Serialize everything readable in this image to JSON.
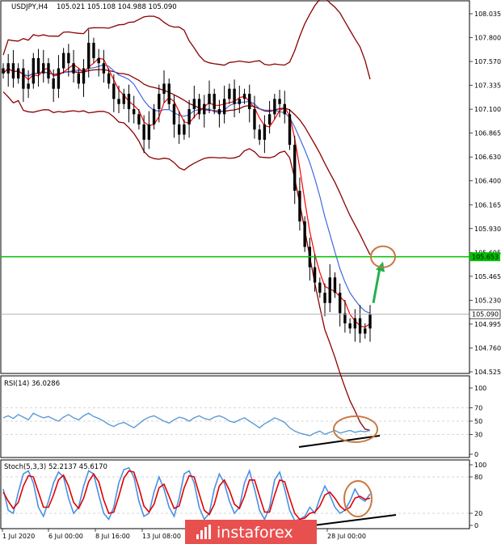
{
  "header": {
    "symbol": "USDJPY,H4",
    "ohlc": "105.021 105.108 104.988 105.090"
  },
  "indicators": {
    "rsi_label": "RSI(14) 36.0286",
    "stoch_label": "Stoch(5,3,3) 52.2137 45.6170"
  },
  "price_axis": {
    "ticks": [
      "108.035",
      "107.800",
      "107.570",
      "107.335",
      "107.100",
      "106.865",
      "106.630",
      "106.400",
      "106.165",
      "105.930",
      "105.695",
      "105.465",
      "105.230",
      "104.995",
      "104.760",
      "104.525"
    ],
    "current_price_label": "105.090",
    "level_label": "105.653"
  },
  "rsi_axis": {
    "ticks": [
      "100",
      "70",
      "50",
      "30",
      "0"
    ]
  },
  "stoch_axis": {
    "ticks": [
      "100",
      "80",
      "20",
      "0"
    ]
  },
  "time_axis": {
    "ticks": [
      "1 Jul 2020",
      "6 Jul 00:00",
      "8 Jul 16:00",
      "13 Jul 08:00",
      "28 Jul 00:00"
    ]
  },
  "logo": {
    "text": "instaforex"
  },
  "colors": {
    "candle": "#000000",
    "bollinger": "#8b0000",
    "ma_fast": "#ff0000",
    "ma_slow": "#4169e1",
    "level": "#00c000",
    "arrow": "#22b14c",
    "circle": "#c87941",
    "rsi": "#5b9bd5",
    "stoch_main": "#4a90e2",
    "stoch_signal": "#e00000",
    "logo_bg": "#e8504f"
  },
  "chart_data": {
    "type": "candlestick",
    "symbol": "USDJPY",
    "timeframe": "H4",
    "ylim": [
      104.525,
      108.035
    ],
    "horizontal_level": 105.653,
    "current_price": 105.09,
    "close_path": [
      107.45,
      107.55,
      107.4,
      107.5,
      107.3,
      107.35,
      107.6,
      107.45,
      107.55,
      107.4,
      107.3,
      107.5,
      107.65,
      107.55,
      107.45,
      107.35,
      107.5,
      107.75,
      107.6,
      107.55,
      107.45,
      107.35,
      107.2,
      107.15,
      107.25,
      107.1,
      107.05,
      106.95,
      106.8,
      106.95,
      107.1,
      107.25,
      107.35,
      107.15,
      106.95,
      106.85,
      106.95,
      107.1,
      107.2,
      107.05,
      107.15,
      107.25,
      107.1,
      107.05,
      107.2,
      107.3,
      107.15,
      107.2,
      107.25,
      107.1,
      106.9,
      106.8,
      106.95,
      107.05,
      107.2,
      107.15,
      107.05,
      106.75,
      106.3,
      106.0,
      105.75,
      105.55,
      105.4,
      105.3,
      105.2,
      105.45,
      105.3,
      105.1,
      105.0,
      104.95,
      105.05,
      104.9,
      104.95,
      105.09
    ],
    "rsi": {
      "period": 14,
      "value": 36.0286,
      "ylim": [
        0,
        100
      ],
      "levels": [
        30,
        50,
        70
      ],
      "values": [
        55,
        58,
        54,
        60,
        56,
        52,
        62,
        58,
        55,
        57,
        53,
        50,
        56,
        60,
        55,
        52,
        58,
        62,
        57,
        54,
        50,
        45,
        42,
        46,
        48,
        44,
        40,
        46,
        52,
        56,
        58,
        54,
        50,
        47,
        52,
        56,
        54,
        50,
        55,
        58,
        54,
        52,
        56,
        58,
        55,
        50,
        48,
        52,
        55,
        50,
        45,
        40,
        46,
        50,
        55,
        52,
        48,
        40,
        35,
        32,
        30,
        28,
        32,
        35,
        30,
        33,
        36,
        32,
        34,
        36,
        33,
        35,
        34,
        36
      ]
    },
    "stochastic": {
      "params": [
        5,
        3,
        3
      ],
      "main_value": 52.2137,
      "signal_value": 45.617,
      "ylim": [
        0,
        100
      ],
      "levels": [
        20,
        80
      ],
      "main": [
        60,
        25,
        20,
        55,
        85,
        90,
        70,
        30,
        15,
        40,
        70,
        88,
        80,
        45,
        20,
        30,
        65,
        90,
        85,
        50,
        20,
        10,
        30,
        70,
        92,
        95,
        80,
        40,
        15,
        20,
        55,
        80,
        60,
        30,
        15,
        45,
        85,
        90,
        70,
        30,
        10,
        20,
        60,
        85,
        70,
        40,
        20,
        30,
        70,
        90,
        60,
        25,
        10,
        30,
        75,
        88,
        60,
        25,
        8,
        10,
        15,
        30,
        20,
        45,
        65,
        50,
        30,
        20,
        25,
        40,
        60,
        45,
        40,
        52
      ],
      "signal": [
        55,
        40,
        28,
        38,
        65,
        82,
        80,
        55,
        30,
        30,
        50,
        75,
        83,
        65,
        38,
        28,
        45,
        72,
        85,
        72,
        42,
        20,
        22,
        48,
        78,
        90,
        88,
        62,
        32,
        22,
        35,
        62,
        68,
        48,
        28,
        32,
        62,
        82,
        80,
        52,
        25,
        18,
        35,
        65,
        75,
        58,
        35,
        28,
        48,
        75,
        75,
        48,
        22,
        22,
        50,
        75,
        72,
        45,
        20,
        10,
        12,
        20,
        22,
        32,
        50,
        55,
        45,
        32,
        25,
        30,
        45,
        48,
        43,
        45
      ]
    }
  }
}
